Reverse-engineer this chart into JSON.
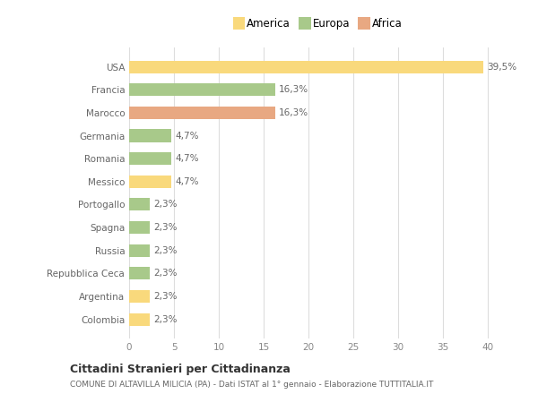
{
  "countries": [
    "USA",
    "Francia",
    "Marocco",
    "Germania",
    "Romania",
    "Messico",
    "Portogallo",
    "Spagna",
    "Russia",
    "Repubblica Ceca",
    "Argentina",
    "Colombia"
  ],
  "values": [
    39.5,
    16.3,
    16.3,
    4.7,
    4.7,
    4.7,
    2.3,
    2.3,
    2.3,
    2.3,
    2.3,
    2.3
  ],
  "labels": [
    "39,5%",
    "16,3%",
    "16,3%",
    "4,7%",
    "4,7%",
    "4,7%",
    "2,3%",
    "2,3%",
    "2,3%",
    "2,3%",
    "2,3%",
    "2,3%"
  ],
  "colors": [
    "#F9D97C",
    "#A8C98A",
    "#E8A882",
    "#A8C98A",
    "#A8C98A",
    "#F9D97C",
    "#A8C98A",
    "#A8C98A",
    "#A8C98A",
    "#A8C98A",
    "#F9D97C",
    "#F9D97C"
  ],
  "legend_labels": [
    "America",
    "Europa",
    "Africa"
  ],
  "legend_colors": [
    "#F9D97C",
    "#A8C98A",
    "#E8A882"
  ],
  "title": "Cittadini Stranieri per Cittadinanza",
  "subtitle": "COMUNE DI ALTAVILLA MILICIA (PA) - Dati ISTAT al 1° gennaio - Elaborazione TUTTITALIA.IT",
  "xlim": [
    0,
    42
  ],
  "xticks": [
    0,
    5,
    10,
    15,
    20,
    25,
    30,
    35,
    40
  ],
  "background_color": "#ffffff",
  "grid_color": "#dddddd"
}
